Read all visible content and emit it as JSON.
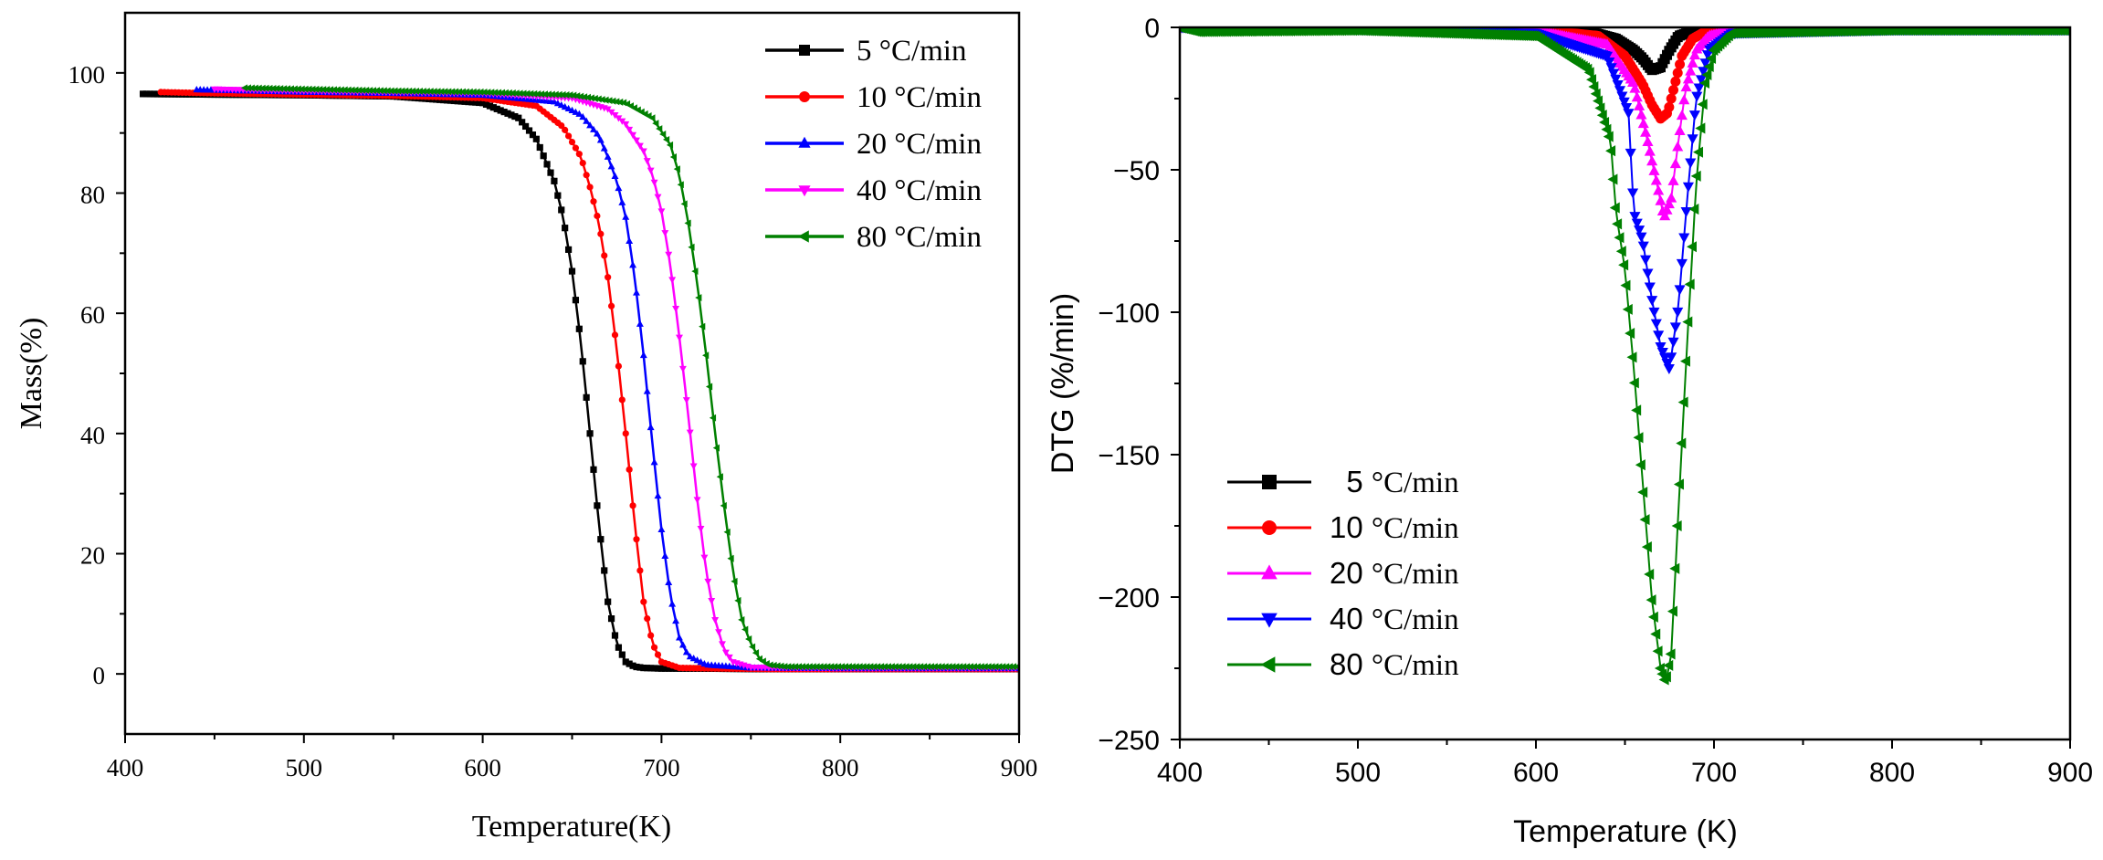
{
  "chart_data": [
    {
      "type": "line",
      "title": "",
      "xlabel": "Temperature(K)",
      "ylabel": "Mass(%)",
      "xlim": [
        400,
        900
      ],
      "ylim": [
        -10,
        110
      ],
      "x_ticks": [
        400,
        500,
        600,
        700,
        800,
        900
      ],
      "y_ticks": [
        0,
        20,
        40,
        60,
        80,
        100
      ],
      "grid": false,
      "legend_position": "top-right",
      "series": [
        {
          "name": "5 °C/min",
          "color": "#000000",
          "marker": "square",
          "x": [
            410,
            450,
            500,
            550,
            600,
            620,
            630,
            640,
            645,
            650,
            655,
            660,
            665,
            670,
            675,
            680,
            685,
            690,
            700,
            720,
            760,
            800,
            850,
            900
          ],
          "y": [
            96.5,
            96.4,
            96.3,
            96.1,
            95.0,
            92.5,
            89.0,
            82.0,
            76.0,
            67.0,
            55.0,
            40.0,
            25.0,
            12.0,
            5.0,
            2.0,
            1.2,
            1.0,
            0.9,
            0.9,
            0.8,
            0.8,
            0.8,
            0.8
          ]
        },
        {
          "name": "10 °C/min",
          "color": "#ff0000",
          "marker": "circle",
          "x": [
            420,
            450,
            500,
            550,
            600,
            630,
            645,
            655,
            660,
            665,
            670,
            675,
            680,
            685,
            690,
            695,
            700,
            710,
            730,
            760,
            800,
            900
          ],
          "y": [
            96.8,
            96.6,
            96.4,
            96.2,
            95.8,
            94.5,
            91.0,
            86.0,
            81.0,
            75.0,
            66.0,
            54.0,
            40.0,
            25.0,
            12.0,
            5.0,
            2.0,
            1.0,
            0.9,
            0.8,
            0.8,
            0.8
          ]
        },
        {
          "name": "20 °C/min",
          "color": "#0000ff",
          "marker": "triangle-up",
          "x": [
            440,
            470,
            500,
            550,
            600,
            640,
            655,
            665,
            670,
            675,
            680,
            685,
            690,
            695,
            700,
            705,
            710,
            715,
            725,
            750,
            800,
            900
          ],
          "y": [
            97.2,
            97.0,
            96.8,
            96.6,
            96.3,
            95.2,
            93.0,
            89.5,
            86.0,
            82.0,
            76.0,
            66.0,
            53.0,
            38.0,
            24.0,
            13.0,
            6.0,
            3.0,
            1.5,
            1.0,
            0.9,
            0.9
          ]
        },
        {
          "name": "40 °C/min",
          "color": "#ff00ff",
          "marker": "triangle-down",
          "x": [
            450,
            500,
            550,
            600,
            650,
            670,
            680,
            690,
            695,
            700,
            705,
            710,
            715,
            720,
            725,
            730,
            735,
            740,
            750,
            780,
            820,
            900
          ],
          "y": [
            97.3,
            97.0,
            96.8,
            96.6,
            95.8,
            94.0,
            91.5,
            87.0,
            83.0,
            77.0,
            68.0,
            56.0,
            43.0,
            29.0,
            17.0,
            9.0,
            4.0,
            2.0,
            1.1,
            1.0,
            1.0,
            1.0
          ]
        },
        {
          "name": "80 °C/min",
          "color": "#008000",
          "marker": "triangle-left",
          "x": [
            467,
            500,
            550,
            600,
            650,
            680,
            695,
            705,
            710,
            715,
            720,
            725,
            730,
            735,
            740,
            745,
            750,
            755,
            760,
            770,
            800,
            850,
            900
          ],
          "y": [
            97.5,
            97.3,
            97.0,
            96.8,
            96.3,
            95.0,
            92.5,
            88.0,
            83.0,
            75.0,
            65.0,
            53.0,
            40.0,
            28.0,
            17.0,
            9.0,
            5.0,
            2.5,
            1.5,
            1.2,
            1.2,
            1.2,
            1.2
          ]
        }
      ]
    },
    {
      "type": "line",
      "title": "",
      "xlabel": "Temperature (K)",
      "ylabel": "DTG (%/min)",
      "xlim": [
        400,
        900
      ],
      "ylim": [
        -250,
        0
      ],
      "x_ticks": [
        400,
        500,
        600,
        700,
        800,
        900
      ],
      "y_ticks": [
        0,
        -50,
        -100,
        -150,
        -200,
        -250
      ],
      "grid": false,
      "legend_position": "bottom-left",
      "series": [
        {
          "name": "5",
          "unit": "°C/min",
          "color": "#000000",
          "marker": "square",
          "x": [
            400,
            500,
            600,
            630,
            645,
            655,
            660,
            665,
            670,
            675,
            680,
            690,
            700,
            800,
            900
          ],
          "y": [
            0,
            -0.2,
            -0.5,
            -1.5,
            -4,
            -8,
            -11,
            -15,
            -14,
            -8,
            -3,
            -1,
            -0.5,
            -0.3,
            -0.3
          ]
        },
        {
          "name": "10",
          "unit": "°C/min",
          "color": "#ff0000",
          "marker": "circle",
          "x": [
            400,
            500,
            600,
            635,
            650,
            660,
            665,
            670,
            674,
            678,
            682,
            688,
            695,
            710,
            800,
            900
          ],
          "y": [
            0,
            -0.3,
            -0.8,
            -3,
            -10,
            -20,
            -27,
            -32,
            -30,
            -20,
            -10,
            -4,
            -1.5,
            -0.6,
            -0.4,
            -0.4
          ]
        },
        {
          "name": "20",
          "unit": "°C/min",
          "color": "#ff00ff",
          "marker": "triangle-up",
          "x": [
            400,
            500,
            600,
            640,
            655,
            662,
            668,
            672,
            676,
            680,
            684,
            690,
            697,
            710,
            800,
            900
          ],
          "y": [
            0,
            -0.4,
            -1.2,
            -6,
            -20,
            -38,
            -55,
            -67,
            -60,
            -40,
            -22,
            -8,
            -3,
            -1,
            -0.5,
            -0.5
          ]
        },
        {
          "name": "40",
          "unit": "°C/min",
          "color": "#0000ff",
          "marker": "triangle-down",
          "x": [
            400,
            500,
            600,
            640,
            652,
            655,
            660,
            665,
            670,
            675,
            680,
            685,
            690,
            697,
            710,
            800,
            900
          ],
          "y": [
            0,
            -0.6,
            -2,
            -10,
            -30,
            -65,
            -75,
            -95,
            -112,
            -120,
            -98,
            -60,
            -25,
            -8,
            -2,
            -0.8,
            -0.8
          ]
        },
        {
          "name": "80",
          "unit": "°C/min",
          "color": "#008000",
          "marker": "triangle-left",
          "x": [
            400,
            410,
            500,
            600,
            630,
            642,
            645,
            650,
            655,
            660,
            665,
            670,
            673,
            676,
            680,
            685,
            690,
            695,
            700,
            710,
            800,
            900
          ],
          "y": [
            0,
            -1.5,
            -1,
            -3,
            -15,
            -40,
            -65,
            -85,
            -120,
            -160,
            -200,
            -225,
            -230,
            -220,
            -170,
            -110,
            -55,
            -20,
            -8,
            -2,
            -1,
            -1
          ]
        }
      ]
    }
  ]
}
